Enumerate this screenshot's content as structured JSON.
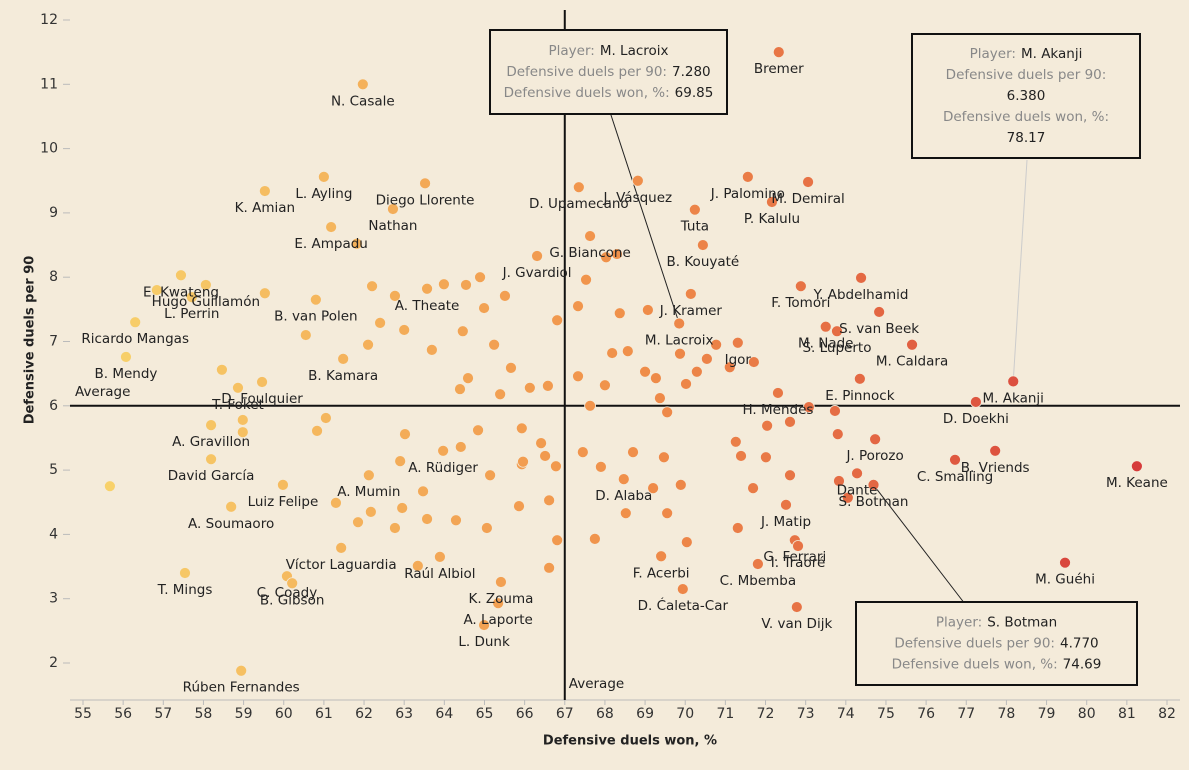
{
  "chart_data": {
    "type": "scatter",
    "x_label": "Defensive duels won, %",
    "y_label": "Defensive duels per 90",
    "xlim": [
      55,
      82
    ],
    "ylim": [
      2,
      12
    ],
    "xticks": [
      55,
      56,
      57,
      58,
      59,
      60,
      61,
      62,
      63,
      64,
      65,
      66,
      67,
      68,
      69,
      70,
      71,
      72,
      73,
      74,
      75,
      76,
      77,
      78,
      79,
      80,
      81,
      82
    ],
    "yticks": [
      2,
      3,
      4,
      5,
      6,
      7,
      8,
      9,
      10,
      11,
      12
    ],
    "color_scale": [
      "#f8d46c",
      "#f0904a",
      "#d4363a"
    ],
    "averages": {
      "x": 67,
      "y": 6,
      "label": "Average"
    },
    "labels": [
      "Bremer",
      "N. Casale",
      "M. Lacroix",
      "M. Akanji",
      "S. Botman",
      "J. Palomino",
      "M. Demiral",
      "D. Upamecano",
      "Diego Llorente",
      "K. Amian",
      "L. Ayling",
      "Nathan",
      "E. Ampadu",
      "J. Vásquez",
      "Tuta",
      "P. Kalulu",
      "G. Biancone",
      "B. Kouyaté",
      "J. Gvardiol",
      "Y. Abdelhamid",
      "E. Kwateng",
      "Hugo Guillamón",
      "L. Perrin",
      "A. Theate",
      "J. Kramer",
      "F. Tomori",
      "S. van Beek",
      "B. van Polen",
      "Igor",
      "M. Nade",
      "M. Caldara",
      "S. Luperto",
      "Ricardo Mangas",
      "B. Mendy",
      "D. Foulquier",
      "B. Kamara",
      "H. Mendes",
      "E. Pinnock",
      "T. Foket",
      "D. Doekhi",
      "A. Gravillon",
      "A. Rüdiger",
      "J. Porozo",
      "B. Vriends",
      "David García",
      "A. Mumin",
      "C. Smalling",
      "M. Keane",
      "Dante",
      "Luiz Felipe",
      "D. Alaba",
      "A. Soumaoro",
      "J. Matip",
      "Víctor Laguardia",
      "Raúl Albiol",
      "G. Ferrari",
      "M. Guéhi",
      "I. Traoré",
      "C. Mbemba",
      "F. Acerbi",
      "K. Zouma",
      "C. Coady",
      "T. Mings",
      "B. Gibson",
      "A. Laporte",
      "D. Ćaleta-Car",
      "V. van Dijk",
      "L. Dunk",
      "Rúben Fernandes",
      null,
      null,
      null,
      null,
      null,
      null,
      null,
      null,
      null,
      null,
      null,
      null,
      null,
      null,
      null,
      null,
      null,
      null,
      null,
      null,
      null,
      null,
      null,
      null,
      null,
      null,
      null,
      null,
      null,
      null,
      null,
      null,
      null,
      null,
      null,
      null,
      null,
      null,
      null,
      null,
      null,
      null,
      null,
      null,
      null,
      null,
      null,
      null,
      null,
      null,
      null,
      null,
      null,
      null,
      null,
      null,
      null,
      null,
      null,
      null,
      null,
      null,
      null,
      null,
      null,
      null,
      null,
      null,
      null,
      null,
      null,
      null,
      null,
      null,
      null,
      null,
      null,
      null,
      null,
      null,
      null,
      null,
      null,
      null,
      null,
      null,
      null,
      null,
      null,
      null,
      null,
      null,
      null,
      null,
      null,
      null
    ],
    "x": [
      72.33,
      61.97,
      69.85,
      78.17,
      74.69,
      71.56,
      73.06,
      67.35,
      63.52,
      59.53,
      61.0,
      62.72,
      61.18,
      68.82,
      70.24,
      72.16,
      67.63,
      70.44,
      66.31,
      74.38,
      57.44,
      58.06,
      57.71,
      63.57,
      70.14,
      72.88,
      74.83,
      60.8,
      71.31,
      73.5,
      75.65,
      73.78,
      56.3,
      56.07,
      59.46,
      61.48,
      72.31,
      74.35,
      58.86,
      77.24,
      58.19,
      63.97,
      74.73,
      77.72,
      58.19,
      62.12,
      76.72,
      81.25,
      74.28,
      59.98,
      68.47,
      58.69,
      72.51,
      61.43,
      63.89,
      72.73,
      79.46,
      72.81,
      71.81,
      69.4,
      65.41,
      60.08,
      57.54,
      60.21,
      65.34,
      69.94,
      72.78,
      64.99,
      58.94,
      55.67,
      56.84,
      58.46,
      58.98,
      58.98,
      59.53,
      60.55,
      60.83,
      61.05,
      61.3,
      61.85,
      61.82,
      62.2,
      62.1,
      62.4,
      62.17,
      62.77,
      63.0,
      63.02,
      62.95,
      63.69,
      63.99,
      64.54,
      64.89,
      64.46,
      64.59,
      64.99,
      64.84,
      65.24,
      65.51,
      65.66,
      65.39,
      65.93,
      65.93,
      66.13,
      66.41,
      66.58,
      66.81,
      66.78,
      66.61,
      65.86,
      66.81,
      66.61,
      67.33,
      67.53,
      67.33,
      67.63,
      68.0,
      67.9,
      68.03,
      68.3,
      68.37,
      68.57,
      68.7,
      68.52,
      69.07,
      69.27,
      69.37,
      69.55,
      69.47,
      69.87,
      70.02,
      70.29,
      70.54,
      70.77,
      71.11,
      71.71,
      71.26,
      71.39,
      71.69,
      71.31,
      72.04,
      72.01,
      72.61,
      73.08,
      73.73,
      73.8,
      73.83,
      74.05,
      72.61,
      70.04,
      69.55,
      69.89,
      69.2,
      67.75,
      67.45,
      65.96,
      65.14,
      65.06,
      64.29,
      63.57,
      63.47,
      63.34,
      64.41,
      62.77,
      62.9,
      64.39,
      66.51,
      68.18,
      69.0
    ],
    "y": [
      11.5,
      11.0,
      7.28,
      6.38,
      4.77,
      9.56,
      9.48,
      9.4,
      9.46,
      9.34,
      9.56,
      9.06,
      8.78,
      9.5,
      9.05,
      9.17,
      8.64,
      8.5,
      8.33,
      7.99,
      8.03,
      7.88,
      7.69,
      7.82,
      7.74,
      7.86,
      7.46,
      7.65,
      6.98,
      7.23,
      6.95,
      7.16,
      7.3,
      6.76,
      6.37,
      6.73,
      6.2,
      6.42,
      6.28,
      6.06,
      5.7,
      5.3,
      5.48,
      5.3,
      5.17,
      4.92,
      5.16,
      5.06,
      4.95,
      4.77,
      4.86,
      4.43,
      4.46,
      3.79,
      3.65,
      3.91,
      3.56,
      3.82,
      3.54,
      3.66,
      3.26,
      3.35,
      3.4,
      3.24,
      2.93,
      3.15,
      2.87,
      2.59,
      1.88,
      4.75,
      7.8,
      6.56,
      5.78,
      5.59,
      7.75,
      7.1,
      5.61,
      5.81,
      4.49,
      4.19,
      8.52,
      7.86,
      6.95,
      7.29,
      4.35,
      7.71,
      7.18,
      5.56,
      4.41,
      6.87,
      7.89,
      7.88,
      8.0,
      7.16,
      6.43,
      7.52,
      5.62,
      6.95,
      7.71,
      6.59,
      6.18,
      5.65,
      5.09,
      6.28,
      5.42,
      6.31,
      7.33,
      5.06,
      4.53,
      4.44,
      3.91,
      3.48,
      7.55,
      7.96,
      6.46,
      6.0,
      6.32,
      5.05,
      8.31,
      8.36,
      7.44,
      6.85,
      5.28,
      4.33,
      7.49,
      6.43,
      6.12,
      5.9,
      5.2,
      6.81,
      6.34,
      6.53,
      6.73,
      6.95,
      6.6,
      6.68,
      5.44,
      5.22,
      4.72,
      4.1,
      5.69,
      5.2,
      5.75,
      5.98,
      5.92,
      5.56,
      4.83,
      4.57,
      4.92,
      3.88,
      4.33,
      4.77,
      4.72,
      3.93,
      5.28,
      5.13,
      4.92,
      4.1,
      4.22,
      4.24,
      4.67,
      3.51,
      5.36,
      4.1,
      5.14,
      6.26,
      5.22,
      6.82,
      6.53
    ],
    "tooltips": [
      {
        "point": 2,
        "player_label": "Player:",
        "player": "M. Lacroix",
        "rows": [
          {
            "label": "Defensive duels per 90:",
            "value": "7.280"
          },
          {
            "label": "Defensive duels won, %:",
            "value": "69.85"
          }
        ]
      },
      {
        "point": 3,
        "player_label": "Player:",
        "player": "M. Akanji",
        "rows": [
          {
            "label": "Defensive duels per 90:",
            "value": "6.380"
          },
          {
            "label": "Defensive duels won, %:",
            "value": "78.17"
          }
        ]
      },
      {
        "point": 4,
        "player_label": "Player:",
        "player": "S. Botman",
        "rows": [
          {
            "label": "Defensive duels per 90:",
            "value": "4.770"
          },
          {
            "label": "Defensive duels won, %:",
            "value": "74.69"
          }
        ]
      }
    ]
  }
}
